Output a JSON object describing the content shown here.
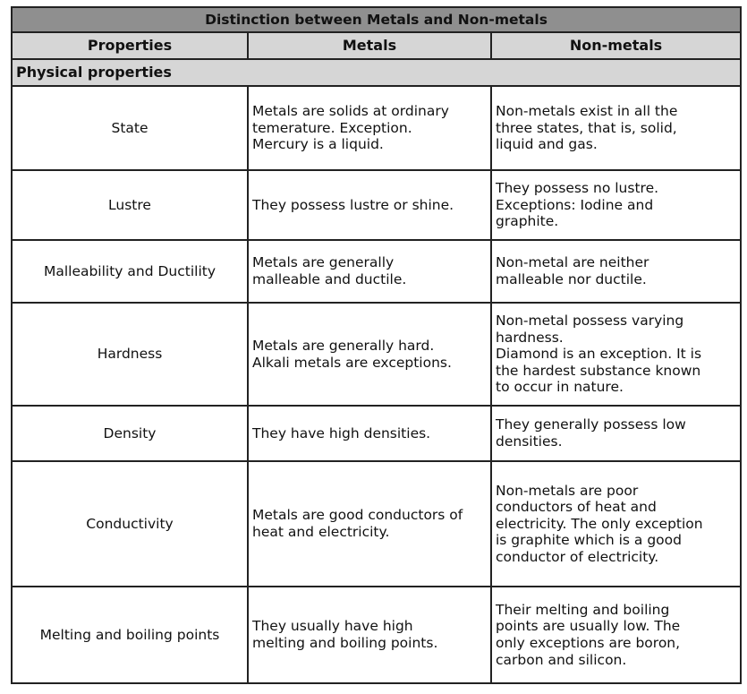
{
  "table": {
    "title": "Distinction between Metals and Non-metals",
    "headers": [
      "Properties",
      "Metals",
      "Non-metals"
    ],
    "section": "Physical properties",
    "rows": [
      {
        "property": "State",
        "metals": [
          "Metals are solids at ordinary",
          "temerature. Exception.",
          "Mercury is a liquid."
        ],
        "nonmetals": [
          "Non-metals exist in all the",
          "three states, that is, solid,",
          "liquid and gas."
        ]
      },
      {
        "property": "Lustre",
        "metals": [
          "They possess lustre or shine."
        ],
        "nonmetals": [
          "They possess no lustre.",
          "Exceptions: Iodine and",
          "graphite."
        ]
      },
      {
        "property": "Malleability and Ductility",
        "metals": [
          "Metals are generally",
          "malleable and ductile."
        ],
        "nonmetals": [
          "Non-metal are neither",
          "malleable nor ductile."
        ]
      },
      {
        "property": "Hardness",
        "metals": [
          "Metals are generally hard.",
          "Alkali metals are exceptions."
        ],
        "nonmetals": [
          "Non-metal possess varying",
          "hardness.",
          "Diamond is an exception. It is",
          "the hardest substance known",
          "to occur in nature."
        ]
      },
      {
        "property": "Density",
        "metals": [
          "They have high densities."
        ],
        "nonmetals": [
          "They generally possess low",
          "densities."
        ]
      },
      {
        "property": "Conductivity",
        "metals": [
          "Metals are good conductors of",
          "heat and electricity."
        ],
        "nonmetals": [
          "Non-metals are poor",
          "conductors of heat and",
          "electricity. The only exception",
          "is graphite which is a good",
          "conductor of electricity."
        ]
      },
      {
        "property": "Melting and boiling points",
        "metals": [
          "They usually have high",
          "melting and boiling points."
        ],
        "nonmetals": [
          "Their melting and boiling",
          "points are usually low. The",
          "only exceptions are boron,",
          "carbon and silicon."
        ]
      }
    ]
  }
}
